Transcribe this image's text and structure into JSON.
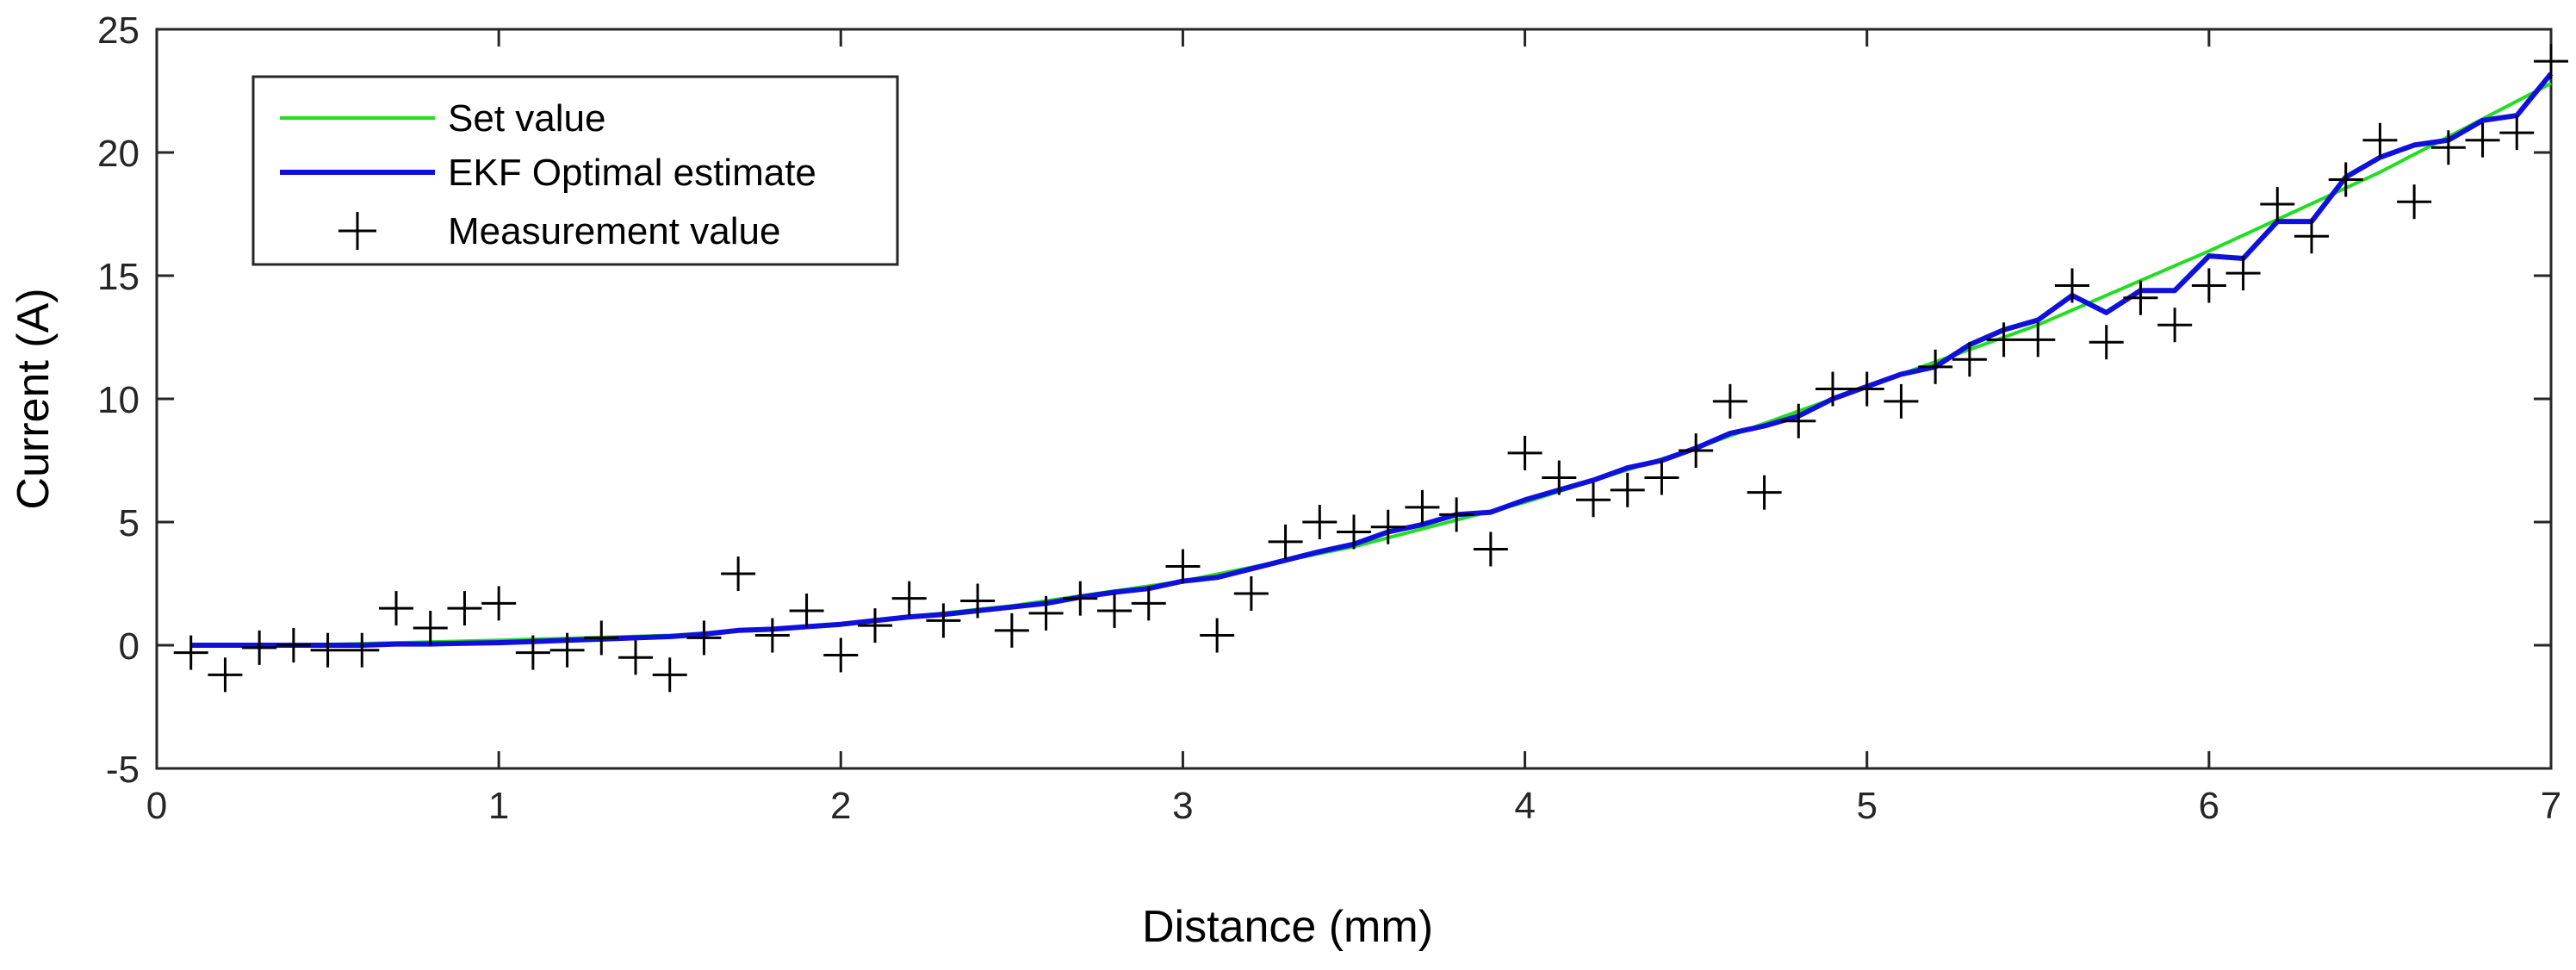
{
  "chart_data": {
    "type": "line",
    "title": "",
    "xlabel": "Distance (mm)",
    "ylabel": "Current (A)",
    "xlim": [
      0,
      7
    ],
    "ylim": [
      -5,
      25
    ],
    "xticks": [
      0,
      1,
      2,
      3,
      4,
      5,
      6,
      7
    ],
    "yticks": [
      -5,
      0,
      5,
      10,
      15,
      20,
      25
    ],
    "grid": false,
    "legend_position": "top-left",
    "colors": {
      "set_value": "#22dd22",
      "ekf": "#1010dd",
      "measurement": "#000000",
      "axis": "#262626"
    },
    "series": [
      {
        "name": "Set value",
        "style": "line",
        "x": [
          0.1,
          0.5,
          1.0,
          1.5,
          2.0,
          2.5,
          3.0,
          3.5,
          4.0,
          4.5,
          5.0,
          5.5,
          6.0,
          6.5,
          7.0
        ],
        "y": [
          0.0,
          0.03,
          0.2,
          0.4,
          0.85,
          1.6,
          2.6,
          4.0,
          5.8,
          8.0,
          10.5,
          13.0,
          16.0,
          19.2,
          22.8
        ]
      },
      {
        "name": "EKF Optimal estimate",
        "style": "line",
        "x": [
          0.1,
          0.2,
          0.3,
          0.4,
          0.5,
          0.6,
          0.7,
          0.8,
          0.9,
          1.0,
          1.1,
          1.2,
          1.3,
          1.4,
          1.5,
          1.6,
          1.7,
          1.8,
          1.9,
          2.0,
          2.1,
          2.2,
          2.3,
          2.4,
          2.5,
          2.6,
          2.7,
          2.8,
          2.9,
          3.0,
          3.1,
          3.2,
          3.3,
          3.4,
          3.5,
          3.6,
          3.7,
          3.8,
          3.9,
          4.0,
          4.1,
          4.2,
          4.3,
          4.4,
          4.5,
          4.6,
          4.7,
          4.8,
          4.9,
          5.0,
          5.1,
          5.2,
          5.3,
          5.4,
          5.5,
          5.6,
          5.7,
          5.8,
          5.9,
          6.0,
          6.1,
          6.2,
          6.3,
          6.4,
          6.5,
          6.6,
          6.7,
          6.8,
          6.9,
          7.0
        ],
        "y": [
          0.0,
          0.0,
          0.0,
          0.0,
          0.0,
          0.0,
          0.05,
          0.05,
          0.08,
          0.1,
          0.15,
          0.2,
          0.25,
          0.3,
          0.35,
          0.45,
          0.6,
          0.65,
          0.75,
          0.85,
          1.0,
          1.15,
          1.25,
          1.4,
          1.55,
          1.7,
          1.95,
          2.15,
          2.3,
          2.6,
          2.75,
          3.1,
          3.45,
          3.8,
          4.1,
          4.6,
          4.9,
          5.3,
          5.4,
          5.9,
          6.3,
          6.7,
          7.2,
          7.5,
          8.0,
          8.6,
          8.9,
          9.3,
          10.0,
          10.5,
          11.0,
          11.3,
          12.2,
          12.8,
          13.2,
          14.2,
          13.5,
          14.4,
          14.4,
          15.8,
          15.7,
          17.2,
          17.2,
          19.0,
          19.8,
          20.3,
          20.5,
          21.3,
          21.5,
          23.2
        ]
      },
      {
        "name": "Measurement value",
        "style": "marker",
        "x": [
          0.1,
          0.2,
          0.3,
          0.4,
          0.5,
          0.6,
          0.7,
          0.8,
          0.9,
          1.0,
          1.1,
          1.2,
          1.3,
          1.4,
          1.5,
          1.6,
          1.7,
          1.8,
          1.9,
          2.0,
          2.1,
          2.2,
          2.3,
          2.4,
          2.5,
          2.6,
          2.7,
          2.8,
          2.9,
          3.0,
          3.1,
          3.2,
          3.3,
          3.4,
          3.5,
          3.6,
          3.7,
          3.8,
          3.9,
          4.0,
          4.1,
          4.2,
          4.3,
          4.4,
          4.5,
          4.6,
          4.7,
          4.8,
          4.9,
          5.0,
          5.1,
          5.2,
          5.3,
          5.4,
          5.5,
          5.6,
          5.7,
          5.8,
          5.9,
          6.0,
          6.1,
          6.2,
          6.3,
          6.4,
          6.5,
          6.6,
          6.7,
          6.8,
          6.9,
          7.0
        ],
        "y": [
          -0.3,
          -1.2,
          -0.1,
          0.0,
          -0.2,
          -0.2,
          1.5,
          0.7,
          1.5,
          1.7,
          -0.3,
          -0.2,
          0.3,
          -0.5,
          -1.2,
          0.3,
          2.9,
          0.4,
          1.4,
          -0.4,
          0.8,
          1.9,
          1.0,
          1.8,
          0.6,
          1.3,
          1.9,
          1.4,
          1.7,
          3.2,
          0.4,
          2.1,
          4.2,
          5.0,
          4.6,
          4.8,
          5.6,
          5.3,
          3.9,
          7.8,
          6.8,
          5.9,
          6.3,
          6.8,
          7.9,
          9.9,
          6.2,
          9.1,
          10.4,
          10.4,
          9.9,
          11.3,
          11.6,
          12.4,
          12.4,
          14.6,
          12.3,
          14.1,
          13.0,
          14.6,
          15.1,
          17.9,
          16.6,
          18.9,
          20.5,
          18.0,
          20.2,
          20.5,
          20.8,
          23.7
        ]
      }
    ]
  }
}
